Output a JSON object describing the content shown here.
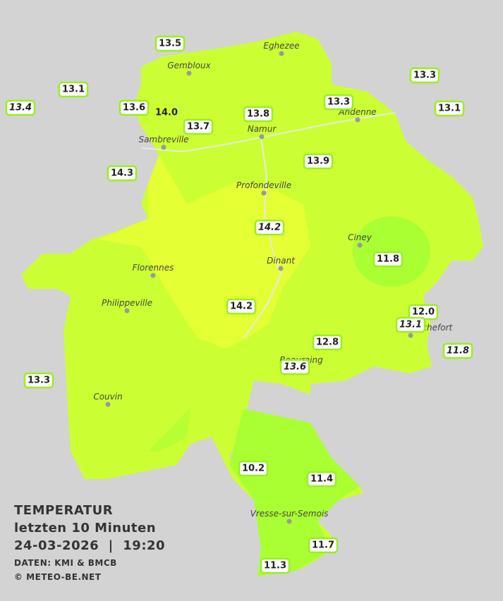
{
  "legend": {
    "title": "TEMPERATUR",
    "subtitle": "letzten 10 Minuten",
    "datetime": "24-03-2026  |  19:20",
    "source": "DATEN: KMI & BMCB",
    "copyright": "© METEO-BE.NET"
  },
  "cities": [
    "Eghezee",
    "Gembloux",
    "Andenne",
    "Namur",
    "Sambreville",
    "Profondeville",
    "Ciney",
    "Dinant",
    "Florennes",
    "Philippeville",
    "Rochefort",
    "Beauraing",
    "Couvin",
    "Vresse-sur-Semois"
  ],
  "stations": [
    "13.5",
    "13.1",
    "13.4",
    "13.6",
    "14.0",
    "13.7",
    "13.8",
    "13.3",
    "13.3",
    "13.1",
    "14.3",
    "13.9",
    "14.2",
    "11.8",
    "14.2",
    "12.0",
    "13.1",
    "12.8",
    "11.8",
    "13.6",
    "13.3",
    "10.2",
    "11.4",
    "11.7",
    "11.3"
  ]
}
